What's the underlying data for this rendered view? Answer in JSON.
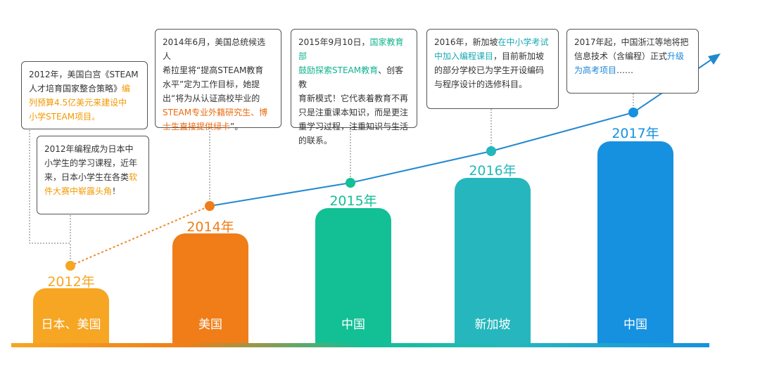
{
  "colors": {
    "c2012": "#f6a623",
    "c2014": "#f07d18",
    "c2015": "#13bf95",
    "c2016": "#25b7bd",
    "c2017": "#1691e0",
    "line_blue": "#2389cf",
    "line_orange": "#f08a2a"
  },
  "milestones": [
    {
      "year": "2012年",
      "country": "日本、美国"
    },
    {
      "year": "2014年",
      "country": "美国"
    },
    {
      "year": "2015年",
      "country": "中国"
    },
    {
      "year": "2016年",
      "country": "新加坡"
    },
    {
      "year": "2017年",
      "country": "中国"
    }
  ],
  "notes": {
    "n2012us": {
      "line1": "2012年，美国白宫《STEAM",
      "line2": "人才培育国家整合策略》",
      "hl1": "编",
      "hl2": "列预算4.5亿美元来建设中",
      "hl3": "小学STEAM项目。"
    },
    "n2012jp": {
      "line1": "2012年编程成为日本中",
      "line2": "小学生的学习课程，近年",
      "line3a": "来，日本小学生在各类",
      "hl1": "软",
      "hl2": "件大赛中崭露头角",
      "tail": "！"
    },
    "n2014": {
      "line1": "2014年6月，美国总统候选人",
      "line2": "希拉里将“提高STEAM教育",
      "line3": "水平”定为工作目标，她提",
      "line4": "出“将为从认证高校毕业的",
      "hl1": "STEAM专业外籍研究生、博",
      "hl2": "士生直接提供绿卡",
      "tail": "”。"
    },
    "n2015": {
      "line1a": "2015年9月10日，",
      "hl1": "国家教育部",
      "hl2": "鼓励探索STEAM教育",
      "line2b": "、创客教",
      "line3": "育新模式！它代表着教育不再",
      "line4": "只是注重课本知识，而是更注",
      "line5": "重学习过程，注重知识与生活",
      "line6": "的联系。"
    },
    "n2016": {
      "line1a": "2016年，新加坡",
      "hl1": "在中小学考试",
      "hl2": "中加入编程课目",
      "line2b": "，目前新加坡",
      "line3": "的部分学校已为学生开设编码",
      "line4": "与程序设计的选修科目。"
    },
    "n2017": {
      "line1": "2017年起，中国浙江等地将把",
      "line2a": "信息技术（含编程）正式",
      "hl1": "升级",
      "hl2": "为高考项目",
      "tail": "……"
    }
  }
}
